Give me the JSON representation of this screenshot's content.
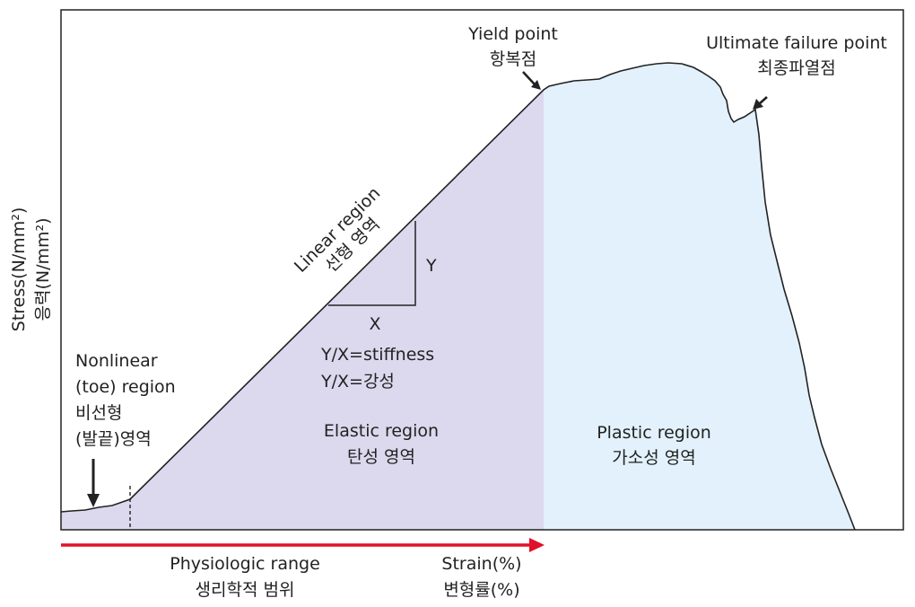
{
  "title": "",
  "axes": {
    "y_label_en": "Stress(N/mm²)",
    "y_label_ko": "응력(N/mm²)",
    "x_label_en": "Strain(%)",
    "x_label_ko": "변형률(%)"
  },
  "range": {
    "label_en": "Physiologic range",
    "label_ko": "생리학적 범위",
    "color": "#e0102a"
  },
  "regions": {
    "toe": {
      "lines": [
        "Nonlinear",
        "(toe) region",
        "비선형",
        "(발끝)영역"
      ]
    },
    "linear": {
      "en": "Linear region",
      "ko": "선형 영역"
    },
    "elastic": {
      "en": "Elastic region",
      "ko": "탄성 영역",
      "color": "#dcd9ee"
    },
    "plastic": {
      "en": "Plastic region",
      "ko": "가소성 영역",
      "color": "#e2f1fb"
    }
  },
  "stiffness": {
    "x": "X",
    "y": "Y",
    "formula_en": "Y/X=stiffness",
    "formula_ko": "Y/X=강성"
  },
  "points": {
    "yield": {
      "en": "Yield point",
      "ko": "항복점"
    },
    "ultimate": {
      "en": "Ultimate failure point",
      "ko": "최종파열점"
    }
  }
}
